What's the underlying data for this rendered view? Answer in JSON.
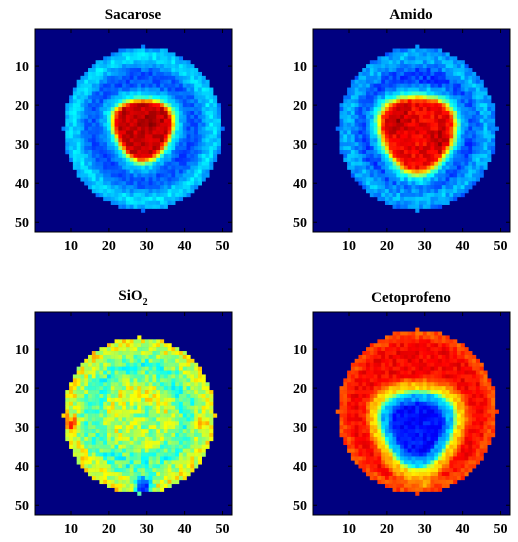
{
  "chart_data": [
    {
      "type": "heatmap",
      "title": "Sacarose",
      "title_sub": "",
      "xlim": [
        0.5,
        52.5
      ],
      "ylim": [
        0.5,
        52.5
      ],
      "y_reversed": true,
      "xticks": [
        10,
        20,
        30,
        40,
        50
      ],
      "yticks": [
        10,
        20,
        30,
        40,
        50
      ],
      "xtick_labels": [
        "10",
        "20",
        "30",
        "40",
        "50"
      ],
      "ytick_labels": [
        "10",
        "20",
        "30",
        "40",
        "50"
      ],
      "colormap": "jet",
      "background_value": 0,
      "disk": {
        "cx": 29,
        "cy": 26,
        "r": 21
      },
      "features": [
        {
          "kind": "disk_fill",
          "value": 0.2
        },
        {
          "kind": "ring",
          "r": 18.5,
          "width": 2.0,
          "value": 0.34
        },
        {
          "kind": "blob",
          "cx": 29,
          "cy": 26,
          "r": 8.0,
          "value": 0.93,
          "edge": 1.6,
          "halo": 0.5
        },
        {
          "kind": "spot",
          "cx": 31,
          "cy": 24,
          "r": 1.5,
          "value": 0.98
        }
      ],
      "noise": 0.04
    },
    {
      "type": "heatmap",
      "title": "Amido",
      "title_sub": "",
      "xlim": [
        0.5,
        52.5
      ],
      "ylim": [
        0.5,
        52.5
      ],
      "y_reversed": true,
      "xticks": [
        10,
        20,
        30,
        40,
        50
      ],
      "yticks": [
        10,
        20,
        30,
        40,
        50
      ],
      "xtick_labels": [
        "10",
        "20",
        "30",
        "40",
        "50"
      ],
      "ytick_labels": [
        "10",
        "20",
        "30",
        "40",
        "50"
      ],
      "colormap": "jet",
      "background_value": 0,
      "disk": {
        "cx": 28,
        "cy": 26,
        "r": 21
      },
      "features": [
        {
          "kind": "disk_fill",
          "value": 0.18
        },
        {
          "kind": "ring",
          "r": 18.5,
          "width": 2.0,
          "value": 0.3
        },
        {
          "kind": "blob",
          "cx": 28,
          "cy": 27,
          "r": 10.0,
          "value": 0.88,
          "edge": 1.8,
          "halo": 0.5
        },
        {
          "kind": "spot",
          "cx": 23,
          "cy": 24,
          "r": 2.0,
          "value": 0.96
        },
        {
          "kind": "spot",
          "cx": 34,
          "cy": 29,
          "r": 1.8,
          "value": 0.96
        }
      ],
      "noise": 0.05
    },
    {
      "type": "heatmap",
      "title": "SiO",
      "title_sub": "2",
      "xlim": [
        0.5,
        52.5
      ],
      "ylim": [
        0.5,
        52.5
      ],
      "y_reversed": true,
      "xticks": [
        10,
        20,
        30,
        40,
        50
      ],
      "yticks": [
        10,
        20,
        30,
        40,
        50
      ],
      "xtick_labels": [
        "10",
        "20",
        "30",
        "40",
        "50"
      ],
      "ytick_labels": [
        "10",
        "20",
        "30",
        "40",
        "50"
      ],
      "colormap": "jet",
      "background_value": 0,
      "disk": {
        "cx": 28,
        "cy": 27,
        "r": 20
      },
      "features": [
        {
          "kind": "disk_fill",
          "value": 0.62
        },
        {
          "kind": "ring",
          "r": 12.5,
          "width": 3.0,
          "value": 0.44
        },
        {
          "kind": "blob",
          "cx": 28,
          "cy": 29,
          "r": 6.0,
          "value": 0.52,
          "edge": 1.5,
          "halo": 0.0
        },
        {
          "kind": "spot",
          "cx": 26,
          "cy": 29,
          "r": 1.3,
          "value": 0.62
        },
        {
          "kind": "spot",
          "cx": 29,
          "cy": 45,
          "r": 1.6,
          "value": 0.12
        },
        {
          "kind": "spot",
          "cx": 10,
          "cy": 29,
          "r": 1.2,
          "value": 0.85
        },
        {
          "kind": "spot",
          "cx": 44,
          "cy": 29,
          "r": 1.2,
          "value": 0.8
        }
      ],
      "noise": 0.1
    },
    {
      "type": "heatmap",
      "title": "Cetoprofeno",
      "title_sub": "",
      "xlim": [
        0.5,
        52.5
      ],
      "ylim": [
        0.5,
        52.5
      ],
      "y_reversed": true,
      "xticks": [
        10,
        20,
        30,
        40,
        50
      ],
      "yticks": [
        10,
        20,
        30,
        40,
        50
      ],
      "xtick_labels": [
        "10",
        "20",
        "30",
        "40",
        "50"
      ],
      "ytick_labels": [
        "10",
        "20",
        "30",
        "40",
        "50"
      ],
      "colormap": "jet",
      "background_value": 0,
      "disk": {
        "cx": 28,
        "cy": 26,
        "r": 21
      },
      "features": [
        {
          "kind": "disk_fill",
          "value": 0.88
        },
        {
          "kind": "ring",
          "r": 20.0,
          "width": 1.2,
          "value": 0.8
        },
        {
          "kind": "blob",
          "cx": 28,
          "cy": 30,
          "r": 10.0,
          "value": 0.3,
          "edge": 1.4,
          "halo": -0.6
        },
        {
          "kind": "blob",
          "cx": 28,
          "cy": 30,
          "r": 7.0,
          "value": 0.14,
          "edge": 1.2,
          "halo": 0.0
        },
        {
          "kind": "spot",
          "cx": 30,
          "cy": 44,
          "r": 1.2,
          "value": 0.7
        }
      ],
      "noise": 0.04
    }
  ]
}
